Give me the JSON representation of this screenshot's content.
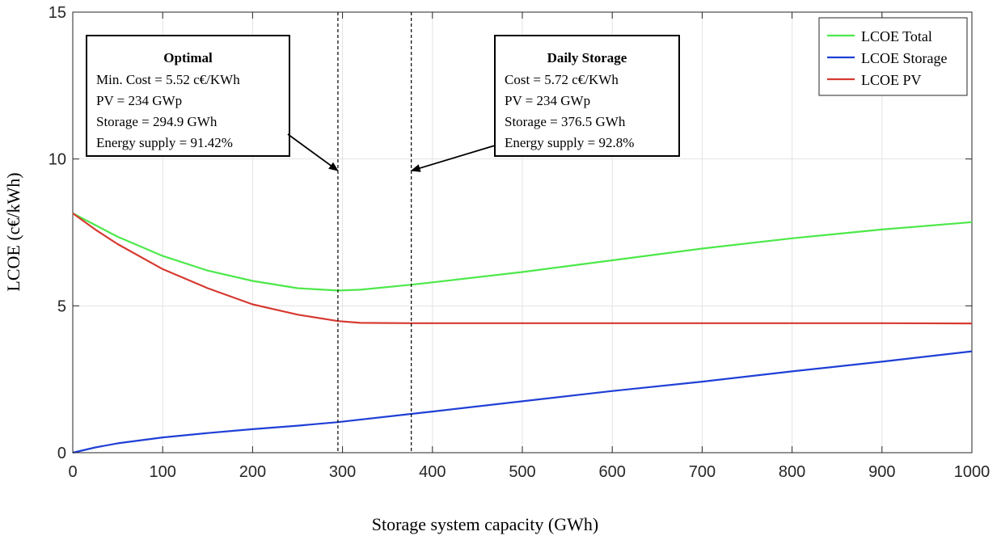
{
  "chart_data": {
    "type": "line",
    "title": "",
    "xlabel": "Storage system capacity (GWh)",
    "ylabel": "LCOE (c€/kWh)",
    "xlim": [
      0,
      1000
    ],
    "ylim": [
      0,
      15
    ],
    "xticks": [
      "0",
      "100",
      "200",
      "300",
      "400",
      "500",
      "600",
      "700",
      "800",
      "900",
      "1000"
    ],
    "yticks": [
      "0",
      "5",
      "10",
      "15"
    ],
    "grid": true,
    "legend_position": "top-right",
    "series": [
      {
        "name": "LCOE Total",
        "color": "#4de84a",
        "x": [
          0,
          25,
          50,
          100,
          150,
          200,
          250,
          294.9,
          320,
          376.5,
          400,
          500,
          600,
          700,
          800,
          900,
          1000
        ],
        "y": [
          8.15,
          7.75,
          7.35,
          6.7,
          6.2,
          5.85,
          5.6,
          5.52,
          5.55,
          5.72,
          5.8,
          6.15,
          6.55,
          6.95,
          7.3,
          7.6,
          7.85
        ]
      },
      {
        "name": "LCOE Storage",
        "color": "#1f3fd6",
        "x": [
          0,
          25,
          50,
          100,
          150,
          200,
          250,
          294.9,
          376.5,
          400,
          500,
          600,
          700,
          800,
          900,
          1000
        ],
        "y": [
          0.0,
          0.18,
          0.32,
          0.52,
          0.67,
          0.8,
          0.92,
          1.04,
          1.32,
          1.4,
          1.75,
          2.1,
          2.42,
          2.77,
          3.1,
          3.45
        ]
      },
      {
        "name": "LCOE PV",
        "color": "#d63a31",
        "x": [
          0,
          25,
          50,
          100,
          150,
          200,
          250,
          294.9,
          320,
          376.5,
          400,
          500,
          600,
          700,
          800,
          900,
          1000
        ],
        "y": [
          8.15,
          7.6,
          7.1,
          6.25,
          5.6,
          5.05,
          4.7,
          4.48,
          4.42,
          4.41,
          4.41,
          4.41,
          4.41,
          4.41,
          4.41,
          4.41,
          4.4
        ]
      }
    ],
    "vlines": [
      294.9,
      376.5
    ],
    "annotations": [
      {
        "title": "Optimal",
        "lines": [
          "Min. Cost = 5.52 c€/KWh",
          "PV = 234 GWp",
          "Storage = 294.9 GWh",
          "Energy supply = 91.42%"
        ],
        "arrow_to": [
          294.9,
          9.6
        ]
      },
      {
        "title": "Daily Storage",
        "lines": [
          "Cost = 5.72 c€/KWh",
          "PV = 234 GWp",
          "Storage = 376.5 GWh",
          "Energy supply = 92.8%"
        ],
        "arrow_to": [
          376.5,
          9.6
        ]
      }
    ]
  }
}
